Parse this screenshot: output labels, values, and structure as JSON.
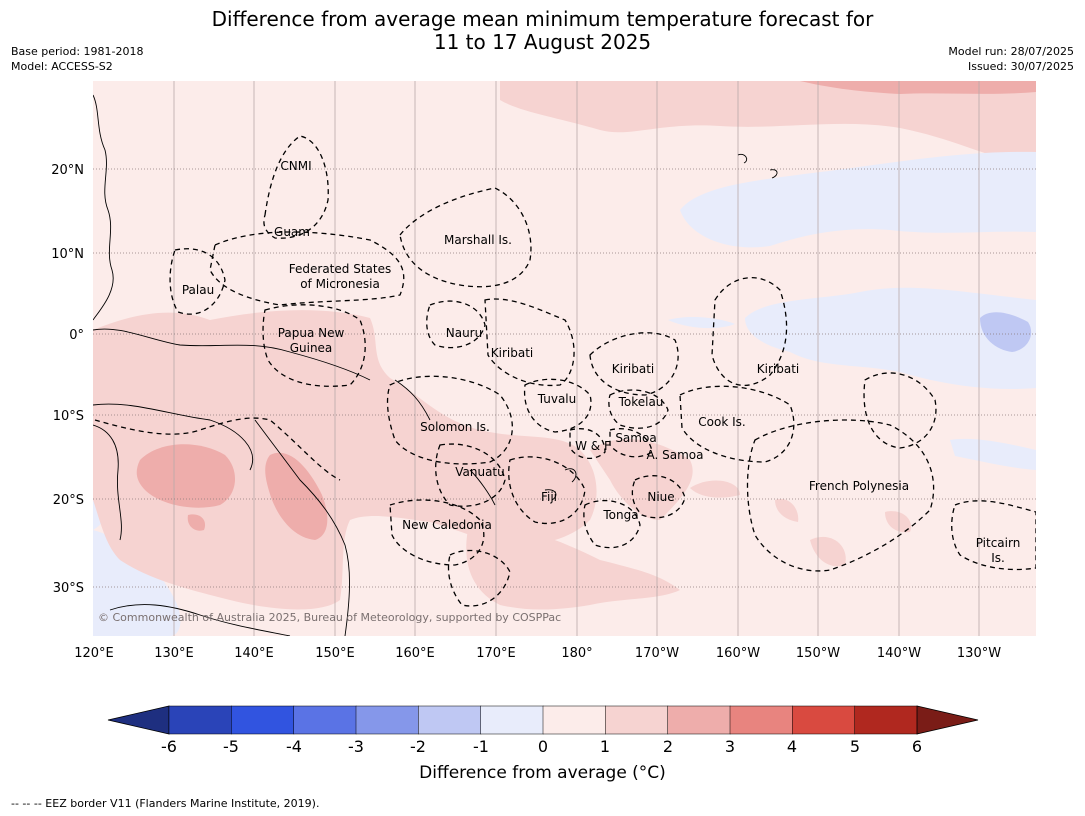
{
  "header": {
    "title_line1": "Difference from average mean minimum temperature forecast for",
    "title_line2": "11 to 17 August 2025",
    "base_period": "Base period: 1981-2018",
    "model": "Model: ACCESS-S2",
    "model_run": "Model run: 28/07/2025",
    "issued": "Issued: 30/07/2025"
  },
  "map": {
    "copyright": "© Commonwealth of Australia 2025, Bureau of Meteorology, supported by COSPPac",
    "lat_ticks": [
      "20°N",
      "10°N",
      "0°",
      "10°S",
      "20°S",
      "30°S"
    ],
    "lon_ticks": [
      "120°E",
      "130°E",
      "140°E",
      "150°E",
      "160°E",
      "170°E",
      "180°",
      "170°W",
      "160°W",
      "150°W",
      "140°W",
      "130°W"
    ],
    "regions": {
      "cnmi": "CNMI",
      "guam": "Guam",
      "marshall": "Marshall Is.",
      "fsm_1": "Federated States",
      "fsm_2": "of Micronesia",
      "palau": "Palau",
      "png_1": "Papua New",
      "png_2": "Guinea",
      "nauru": "Nauru",
      "kiribati_w": "Kiribati",
      "kiribati_c": "Kiribati",
      "kiribati_e": "Kiribati",
      "tuvalu": "Tuvalu",
      "tokelau": "Tokelau",
      "solomon": "Solomon Is.",
      "cook": "Cook Is.",
      "wf": "W & F",
      "samoa": "Samoa",
      "asamoa": "A. Samoa",
      "vanuatu": "Vanuatu",
      "fiji": "Fiji",
      "niue": "Niue",
      "french_polynesia": "French Polynesia",
      "tonga": "Tonga",
      "new_caledonia": "New Caledonia",
      "pitcairn_1": "Pitcairn",
      "pitcairn_2": "Is."
    }
  },
  "colorbar": {
    "ticks": [
      "-6",
      "-5",
      "-4",
      "-3",
      "-2",
      "-1",
      "0",
      "1",
      "2",
      "3",
      "4",
      "5",
      "6"
    ],
    "colors": [
      "#1e2f80",
      "#2a44b8",
      "#3154e0",
      "#5a73e5",
      "#8597ea",
      "#bfc8f3",
      "#e8ecfb",
      "#fcecea",
      "#f6d3d1",
      "#eeadab",
      "#e8847f",
      "#d94a40",
      "#b0281f",
      "#7a1c17"
    ],
    "label": "Difference from average (°C)"
  },
  "footer": {
    "eez_note": "--  --  -- EEZ border V11 (Flanders Marine Institute, 2019)."
  }
}
